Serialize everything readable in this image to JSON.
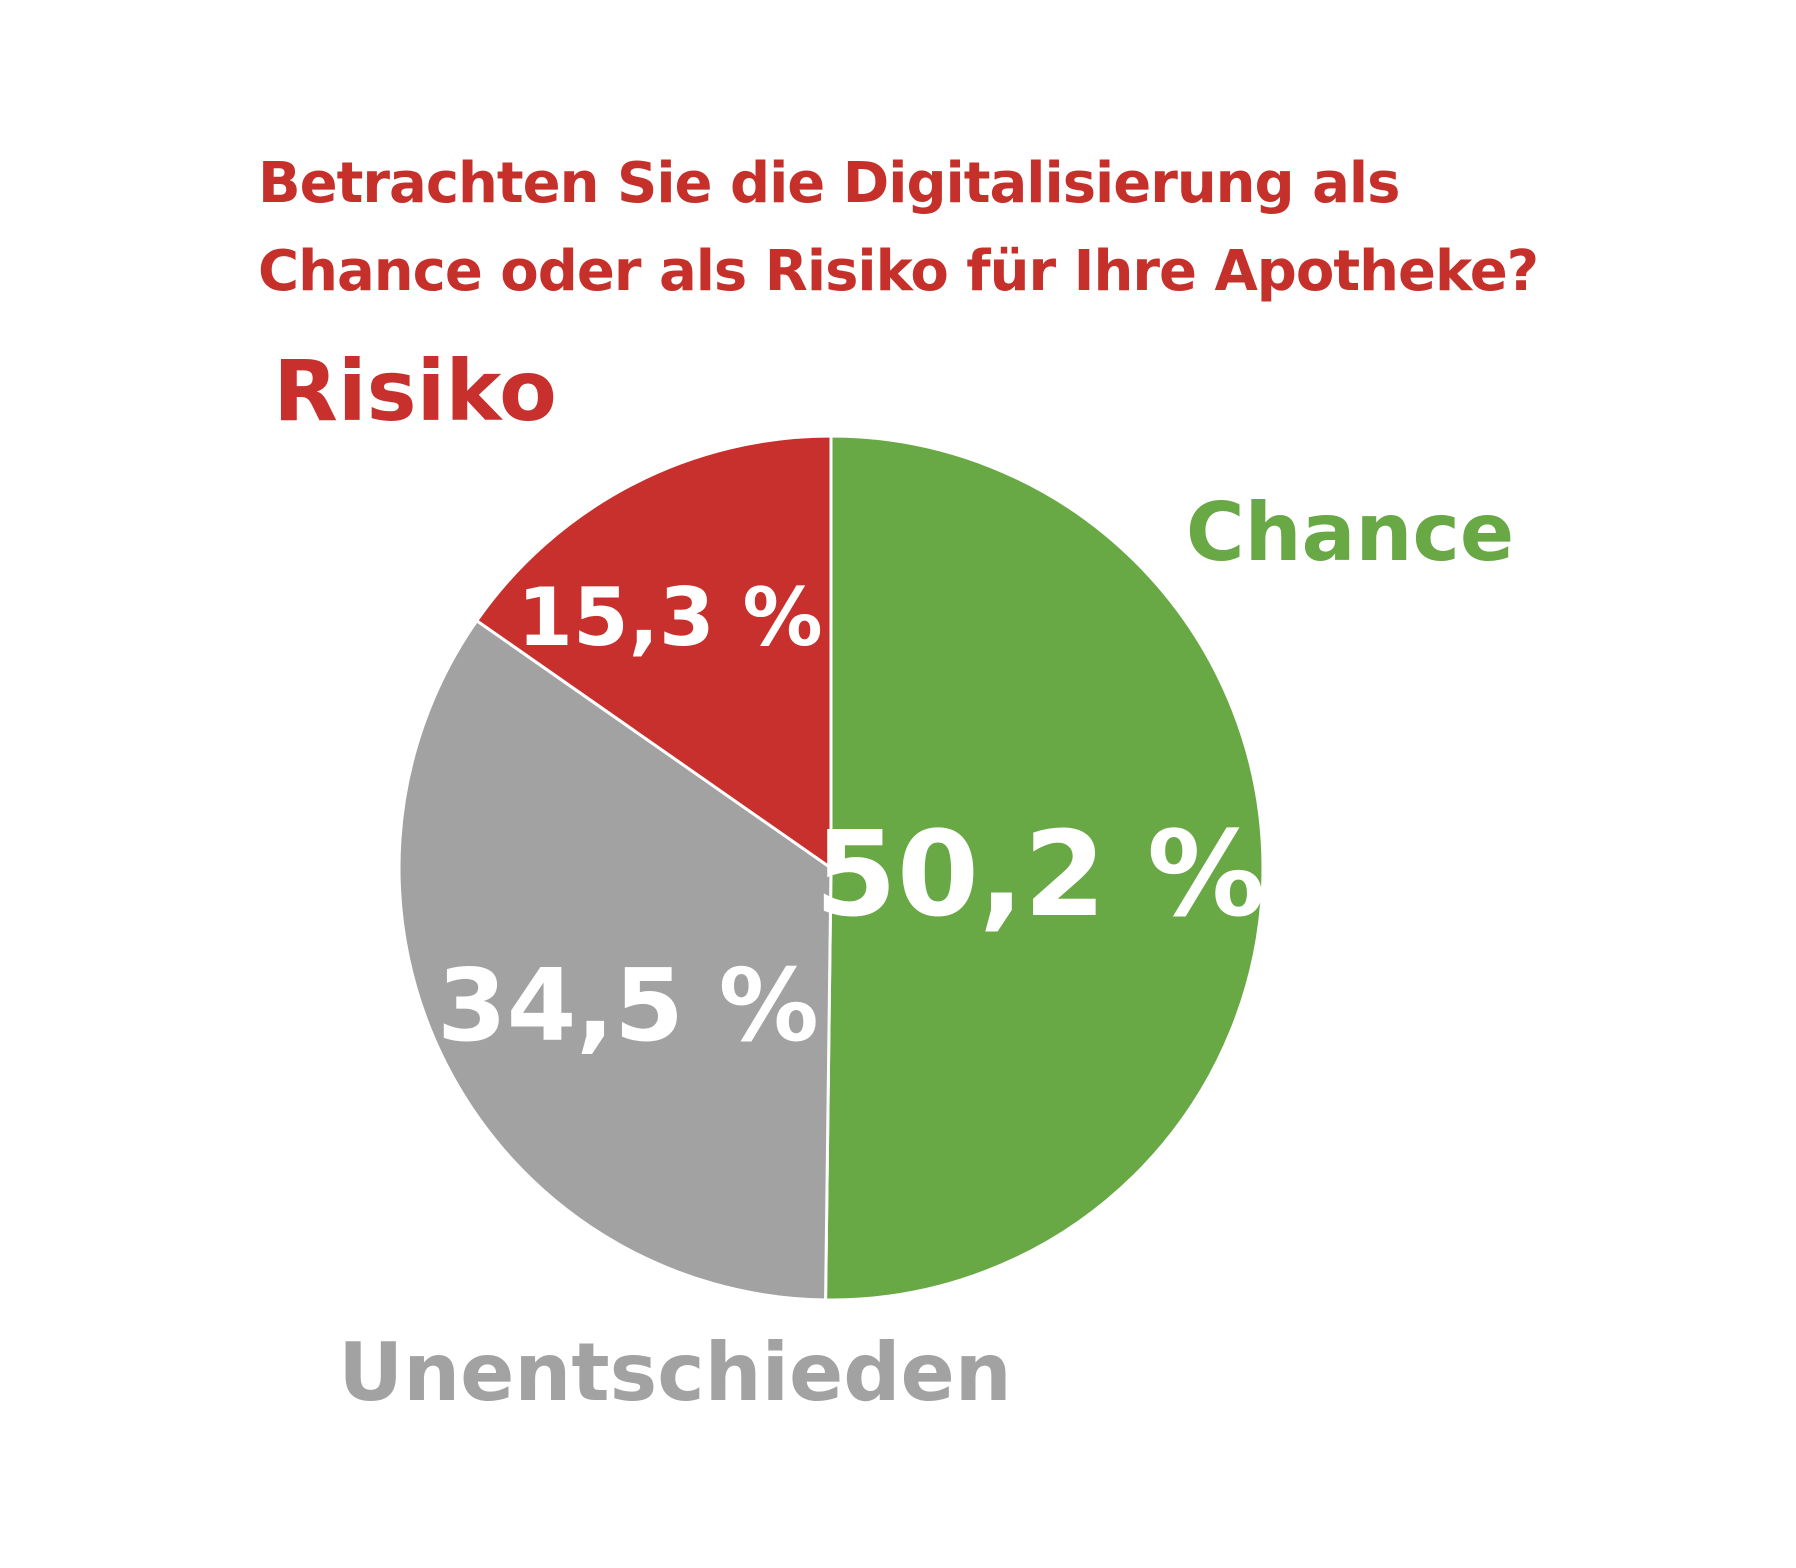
{
  "chart_data": {
    "type": "pie",
    "title_lines": [
      "Betrachten Sie die Digitalisierung als",
      "Chance oder als Risiko für Ihre Apotheke?"
    ],
    "slices": [
      {
        "name": "Chance",
        "value": 50.2,
        "label": "50,2 %",
        "color": "#68a845"
      },
      {
        "name": "Unentschieden",
        "value": 34.5,
        "label": "34,5 %",
        "color": "#a2a2a2"
      },
      {
        "name": "Risiko",
        "value": 15.3,
        "label": "15,3 %",
        "color": "#c8302d"
      }
    ],
    "start_angle": "12 o'clock",
    "direction": "clockwise"
  }
}
